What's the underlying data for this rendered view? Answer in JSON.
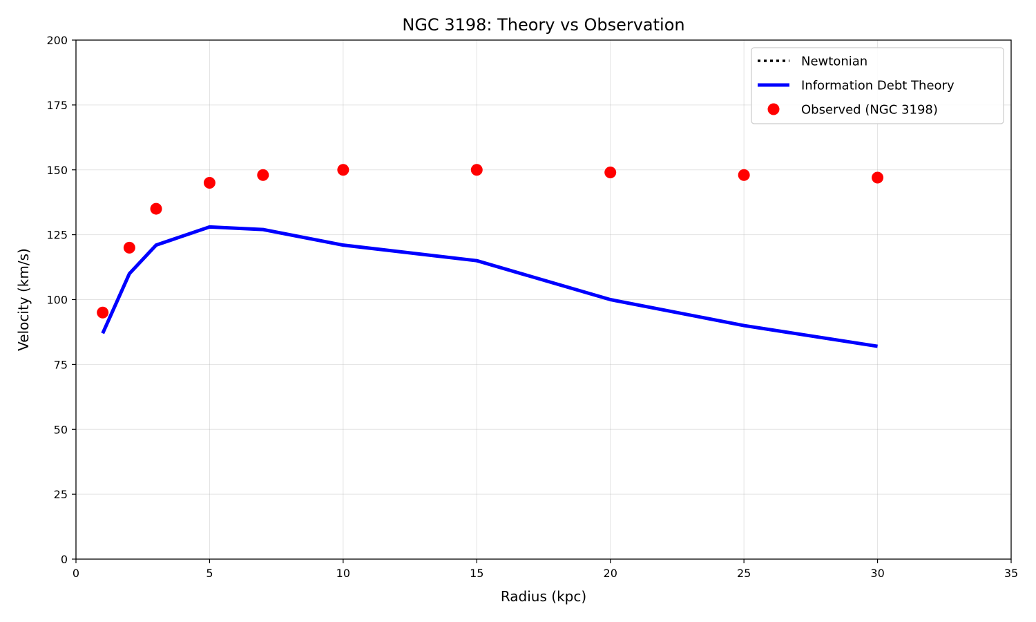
{
  "chart_data": {
    "type": "line",
    "title": "NGC 3198: Theory vs Observation",
    "xlabel": "Radius (kpc)",
    "ylabel": "Velocity (km/s)",
    "xlim": [
      0,
      35
    ],
    "ylim": [
      0,
      200
    ],
    "xticks": [
      0,
      5,
      10,
      15,
      20,
      25,
      30,
      35
    ],
    "yticks": [
      0,
      25,
      50,
      75,
      100,
      125,
      150,
      175,
      200
    ],
    "xtick_labels": [
      "0",
      "5",
      "10",
      "15",
      "20",
      "25",
      "30",
      "35"
    ],
    "ytick_labels": [
      "0",
      "25",
      "50",
      "75",
      "100",
      "125",
      "150",
      "175",
      "200"
    ],
    "grid": true,
    "legend_position": "top-right",
    "series": [
      {
        "name": "Newtonian",
        "style": "dotted-line",
        "color": "#000000",
        "x": [],
        "y": []
      },
      {
        "name": "Information Debt Theory",
        "style": "solid-line",
        "color": "#0000ff",
        "x": [
          1,
          2,
          3,
          5,
          7,
          10,
          15,
          20,
          25,
          30
        ],
        "y": [
          87,
          110,
          121,
          128,
          127,
          121,
          115,
          100,
          90,
          82
        ]
      },
      {
        "name": "Observed (NGC 3198)",
        "style": "markers",
        "color": "#ff0000",
        "x": [
          1,
          2,
          3,
          5,
          7,
          10,
          15,
          20,
          25,
          30
        ],
        "y": [
          95,
          120,
          135,
          145,
          148,
          150,
          150,
          149,
          148,
          147
        ]
      }
    ]
  }
}
